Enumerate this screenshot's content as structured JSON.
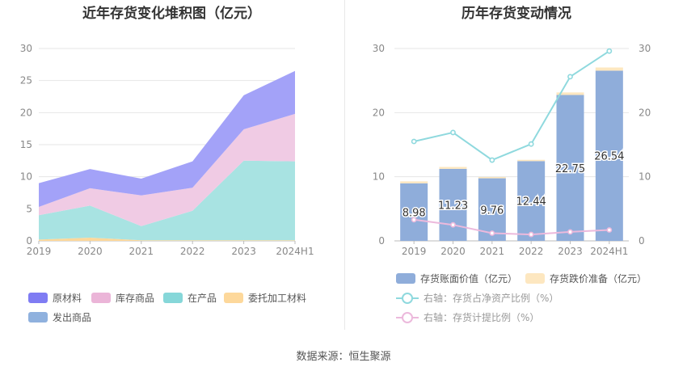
{
  "source_label": "数据来源：恒生聚源",
  "chart_data": [
    {
      "type": "area",
      "stacked": true,
      "title": "近年存货变化堆积图（亿元）",
      "categories": [
        "2019",
        "2020",
        "2021",
        "2022",
        "2023",
        "2024H1"
      ],
      "ylim": [
        0,
        30
      ],
      "yticks": [
        0,
        5,
        10,
        15,
        20,
        25,
        30
      ],
      "grid": true,
      "legend_position": "bottom",
      "series": [
        {
          "name": "委托加工材料",
          "color": "#fdd89b",
          "values": [
            0.2,
            0.5,
            0.1,
            0.1,
            0.1,
            0.1
          ]
        },
        {
          "name": "在产品",
          "color": "#a8e3e2",
          "values": [
            3.8,
            5.0,
            2.2,
            4.6,
            12.4,
            12.3
          ]
        },
        {
          "name": "库存商品",
          "color": "#f0cbe4",
          "values": [
            1.3,
            2.7,
            4.8,
            3.6,
            4.9,
            7.4
          ]
        },
        {
          "name": "原材料",
          "color": "#a3a2f8",
          "values": [
            3.7,
            3.0,
            2.6,
            4.1,
            5.3,
            6.7
          ]
        },
        {
          "name": "发出商品",
          "color": "#8fb1de",
          "values": [
            0,
            0,
            0,
            0,
            0,
            0
          ]
        }
      ],
      "legend": [
        {
          "name": "原材料",
          "color": "#7f7cf3"
        },
        {
          "name": "库存商品",
          "color": "#ebb5d8"
        },
        {
          "name": "在产品",
          "color": "#86d7d9"
        },
        {
          "name": "委托加工材料",
          "color": "#fdd89b"
        },
        {
          "name": "发出商品",
          "color": "#8fb1de"
        }
      ]
    },
    {
      "type": "bar",
      "title": "历年存货变动情况",
      "categories": [
        "2019",
        "2020",
        "2021",
        "2022",
        "2023",
        "2024H1"
      ],
      "ylim": [
        0,
        30
      ],
      "yticks": [
        0,
        10,
        20,
        30
      ],
      "y2lim": [
        0,
        30
      ],
      "y2ticks": [
        0,
        10,
        20,
        30
      ],
      "grid": true,
      "legend_position": "bottom",
      "series": [
        {
          "name": "存货账面价值（亿元）",
          "type": "bar",
          "color": "#8fadda",
          "values": [
            8.98,
            11.23,
            9.76,
            12.44,
            22.75,
            26.54
          ],
          "labels": [
            "8.98",
            "11.23",
            "9.76",
            "12.44",
            "22.75",
            "26.54"
          ]
        },
        {
          "name": "存货跌价准备（亿元）",
          "type": "bar",
          "color": "#fde7c0",
          "values": [
            0.3,
            0.3,
            0.2,
            0.2,
            0.4,
            0.5
          ]
        },
        {
          "name": "右轴：存货占净资产比例（%）",
          "type": "line",
          "axis": "right",
          "color": "#8fd9de",
          "values": [
            15.5,
            16.9,
            12.6,
            15.1,
            25.6,
            29.6
          ]
        },
        {
          "name": "右轴：存货计提比例（%）",
          "type": "line",
          "axis": "right",
          "color": "#ecb9dc",
          "values": [
            3.3,
            2.5,
            1.2,
            1.0,
            1.4,
            1.7
          ]
        }
      ]
    }
  ]
}
